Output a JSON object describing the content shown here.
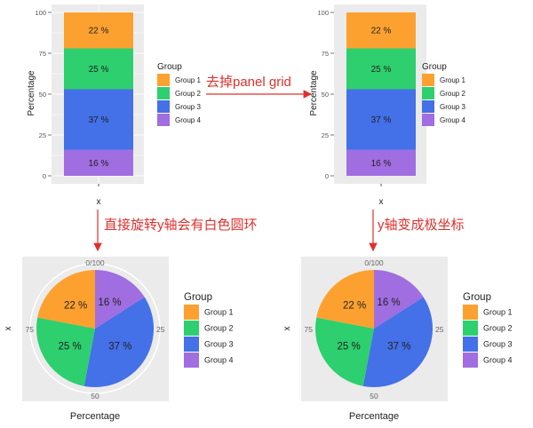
{
  "colors": {
    "Group 1": "#fca130",
    "Group 2": "#2ecf6e",
    "Group 3": "#4470e8",
    "Group 4": "#a06ee0",
    "panel": "#ebebeb",
    "annotation": "#e0302c"
  },
  "annotations": {
    "remove_grid": "去掉panel grid",
    "rotate_y": "直接旋转y轴会有白色圆环",
    "polar_y": "y轴变成极坐标"
  },
  "chart_data": [
    {
      "type": "bar",
      "id": "bar-with-grid",
      "categories": [
        "x"
      ],
      "xlabel": "x",
      "ylabel": "Percentage",
      "ylim": [
        0,
        100
      ],
      "yticks": [
        "0",
        "25",
        "50",
        "75",
        "100"
      ],
      "grid": true,
      "legend_title": "Group",
      "legend_position": "right",
      "series": [
        {
          "name": "Group 1",
          "value": 22,
          "label": "22 %"
        },
        {
          "name": "Group 2",
          "value": 25,
          "label": "25 %"
        },
        {
          "name": "Group 3",
          "value": 37,
          "label": "37 %"
        },
        {
          "name": "Group 4",
          "value": 16,
          "label": "16 %"
        }
      ]
    },
    {
      "type": "bar",
      "id": "bar-no-grid",
      "categories": [
        "x"
      ],
      "xlabel": "x",
      "ylabel": "Percentage",
      "ylim": [
        0,
        100
      ],
      "yticks": [
        "0",
        "25",
        "50",
        "75",
        "100"
      ],
      "grid": false,
      "legend_title": "Group",
      "legend_position": "right",
      "series": [
        {
          "name": "Group 1",
          "value": 22,
          "label": "22 %"
        },
        {
          "name": "Group 2",
          "value": 25,
          "label": "25 %"
        },
        {
          "name": "Group 3",
          "value": 37,
          "label": "37 %"
        },
        {
          "name": "Group 4",
          "value": 16,
          "label": "16 %"
        }
      ]
    },
    {
      "type": "pie",
      "id": "pie-with-ring",
      "xlabel": "Percentage",
      "ylabel": "x",
      "theta_ticks": [
        "0/100",
        "25",
        "50",
        "75"
      ],
      "white_ring": true,
      "legend_title": "Group",
      "legend_position": "right",
      "series": [
        {
          "name": "Group 1",
          "value": 22,
          "label": "22 %"
        },
        {
          "name": "Group 2",
          "value": 25,
          "label": "25 %"
        },
        {
          "name": "Group 3",
          "value": 37,
          "label": "37 %"
        },
        {
          "name": "Group 4",
          "value": 16,
          "label": "16 %"
        }
      ]
    },
    {
      "type": "pie",
      "id": "pie-polar",
      "xlabel": "Percentage",
      "ylabel": "x",
      "theta_ticks": [
        "0/100",
        "25",
        "50",
        "75"
      ],
      "white_ring": false,
      "legend_title": "Group",
      "legend_position": "right",
      "series": [
        {
          "name": "Group 1",
          "value": 22,
          "label": "22 %"
        },
        {
          "name": "Group 2",
          "value": 25,
          "label": "25 %"
        },
        {
          "name": "Group 3",
          "value": 37,
          "label": "37 %"
        },
        {
          "name": "Group 4",
          "value": 16,
          "label": "16 %"
        }
      ]
    }
  ]
}
